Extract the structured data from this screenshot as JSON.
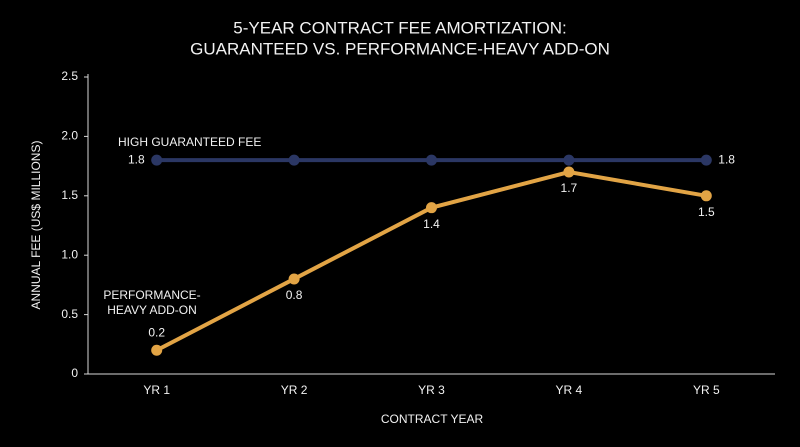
{
  "chart_data": {
    "type": "line",
    "title_lines": [
      "5-YEAR CONTRACT FEE AMORTIZATION:",
      "GUARANTEED VS. PERFORMANCE-HEAVY ADD-ON"
    ],
    "x_label": "CONTRACT YEAR",
    "y_label": "ANNUAL FEE (US$ MILLIONS)",
    "categories": [
      "YR 1",
      "YR 2",
      "YR 3",
      "YR 4",
      "YR 5"
    ],
    "series": [
      {
        "name": "HIGH GUARANTEED FEE",
        "color": "#2b3764",
        "values": [
          1.8,
          1.8,
          1.8,
          1.8,
          1.8
        ],
        "data_labels": "ends"
      },
      {
        "name": "PERFORMANCE-HEAVY ADD-ON",
        "color": "#e2a445",
        "values": [
          0.2,
          0.8,
          1.4,
          1.7,
          1.5
        ],
        "data_labels": "all"
      }
    ],
    "ylim": [
      0,
      2.5
    ],
    "yticks": [
      0,
      0.5,
      {
        "value": 1,
        "label": "1.0"
      },
      1.5,
      {
        "value": 2,
        "label": "2.0"
      },
      2.5
    ],
    "grid": false
  }
}
